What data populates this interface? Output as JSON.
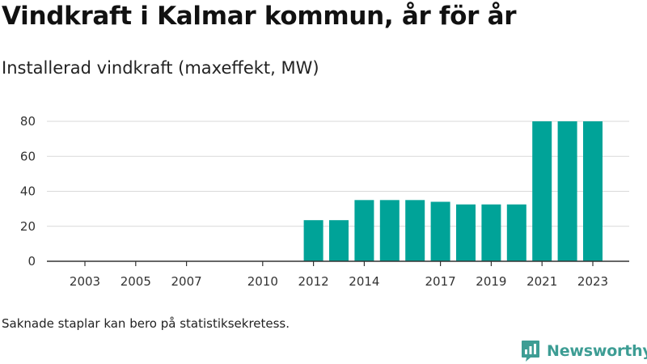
{
  "header": {
    "title": "Vindkraft i Kalmar kommun, år för år",
    "subtitle": "Installerad vindkraft (maxeffekt, MW)"
  },
  "footer": {
    "note": "Saknade staplar kan bero på statistiksekretess.",
    "brand": "Newsworthy"
  },
  "colors": {
    "bar": "#00a398",
    "grid": "#d9d9d9",
    "axis": "#333333",
    "brand": "#3d9d94"
  },
  "chart_data": {
    "type": "bar",
    "categories": [
      "2003",
      "2004",
      "2005",
      "2006",
      "2007",
      "2008",
      "2009",
      "2010",
      "2011",
      "2012",
      "2013",
      "2014",
      "2015",
      "2016",
      "2017",
      "2018",
      "2019",
      "2020",
      "2021",
      "2022",
      "2023"
    ],
    "values": [
      0,
      0,
      0,
      0,
      0,
      0,
      0,
      0,
      0,
      23.5,
      23.5,
      35,
      35,
      35,
      34,
      32.5,
      32.5,
      32.5,
      80,
      80,
      80
    ],
    "x_tick_labels": [
      "2003",
      "2005",
      "2007",
      "2010",
      "2012",
      "2014",
      "2017",
      "2019",
      "2021",
      "2023"
    ],
    "y_ticks": [
      0,
      20,
      40,
      60,
      80
    ],
    "ylim": [
      0,
      88
    ],
    "xlabel": "",
    "ylabel": "",
    "grid": true,
    "legend": "none"
  }
}
